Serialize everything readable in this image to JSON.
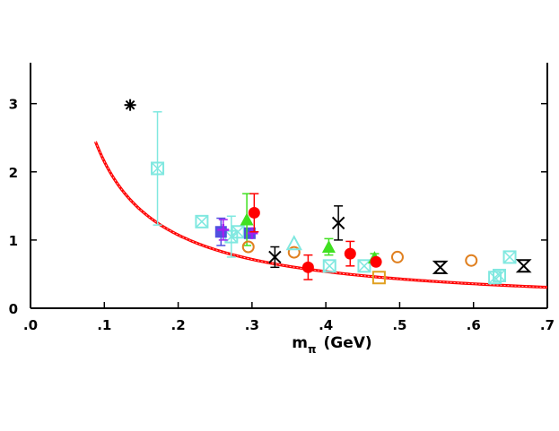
{
  "chart_data": {
    "type": "scatter",
    "title": "",
    "xlabel_main": "m",
    "xlabel_sub": "π",
    "xlabel_unit": "(GeV)",
    "ylabel": "",
    "xlim": [
      0.0,
      0.7
    ],
    "ylim": [
      0.0,
      3.6
    ],
    "x_ticks": [
      0.0,
      0.1,
      0.2,
      0.3,
      0.4,
      0.5,
      0.6,
      0.7
    ],
    "x_tick_labels": [
      ".0",
      ".1",
      ".2",
      ".3",
      ".4",
      ".5",
      ".6",
      ".7"
    ],
    "y_ticks": [
      0,
      1,
      2,
      3
    ],
    "y_tick_labels": [
      "0",
      "1",
      "2",
      "3"
    ],
    "grid": false,
    "fit_curve": {
      "form": "a / x",
      "a": 0.215,
      "x_range": [
        0.088,
        0.7
      ],
      "color": "#ff0000"
    },
    "series": [
      {
        "marker": "star",
        "color": "#000000",
        "points": [
          {
            "x": 0.135,
            "y": 2.98
          }
        ]
      },
      {
        "marker": "boxcross",
        "color": "#80e8e0",
        "points": [
          {
            "x": 0.172,
            "y": 2.05,
            "err": 0.83
          },
          {
            "x": 0.232,
            "y": 1.27
          },
          {
            "x": 0.272,
            "y": 1.05,
            "err": 0.3
          },
          {
            "x": 0.281,
            "y": 1.12
          },
          {
            "x": 0.405,
            "y": 0.62
          },
          {
            "x": 0.452,
            "y": 0.62
          },
          {
            "x": 0.629,
            "y": 0.45
          },
          {
            "x": 0.635,
            "y": 0.48
          },
          {
            "x": 0.649,
            "y": 0.75
          }
        ]
      },
      {
        "marker": "square-filled",
        "color": "#5050e0",
        "points": [
          {
            "x": 0.258,
            "y": 1.12,
            "err": 0.2
          },
          {
            "x": 0.297,
            "y": 1.1
          }
        ]
      },
      {
        "marker": "cross",
        "color": "#a020f0",
        "points": [
          {
            "x": 0.261,
            "y": 1.15,
            "err": 0.15
          },
          {
            "x": 0.3,
            "y": 1.1
          }
        ]
      },
      {
        "marker": "triangle-filled",
        "color": "#40e020",
        "points": [
          {
            "x": 0.293,
            "y": 1.3,
            "err": 0.38
          },
          {
            "x": 0.404,
            "y": 0.9,
            "err": 0.12
          },
          {
            "x": 0.466,
            "y": 0.74,
            "err": 0.06
          }
        ]
      },
      {
        "marker": "circle-filled",
        "color": "#ff0000",
        "points": [
          {
            "x": 0.303,
            "y": 1.4,
            "err": 0.28
          },
          {
            "x": 0.376,
            "y": 0.6,
            "err": 0.18
          },
          {
            "x": 0.433,
            "y": 0.8,
            "err": 0.18
          },
          {
            "x": 0.468,
            "y": 0.68
          }
        ]
      },
      {
        "marker": "circle-open",
        "color": "#e08020",
        "points": [
          {
            "x": 0.295,
            "y": 0.9
          },
          {
            "x": 0.357,
            "y": 0.82
          },
          {
            "x": 0.497,
            "y": 0.75
          },
          {
            "x": 0.597,
            "y": 0.7
          }
        ]
      },
      {
        "marker": "triangle-open",
        "color": "#80e8e0",
        "points": [
          {
            "x": 0.357,
            "y": 0.95
          }
        ]
      },
      {
        "marker": "x",
        "color": "#000000",
        "points": [
          {
            "x": 0.331,
            "y": 0.75,
            "err": 0.15
          },
          {
            "x": 0.417,
            "y": 1.25,
            "err": 0.25
          }
        ]
      },
      {
        "marker": "square-open",
        "color": "#e0a020",
        "points": [
          {
            "x": 0.472,
            "y": 0.45
          }
        ]
      },
      {
        "marker": "hourglass",
        "color": "#000000",
        "points": [
          {
            "x": 0.555,
            "y": 0.6
          },
          {
            "x": 0.668,
            "y": 0.62
          }
        ]
      }
    ]
  }
}
